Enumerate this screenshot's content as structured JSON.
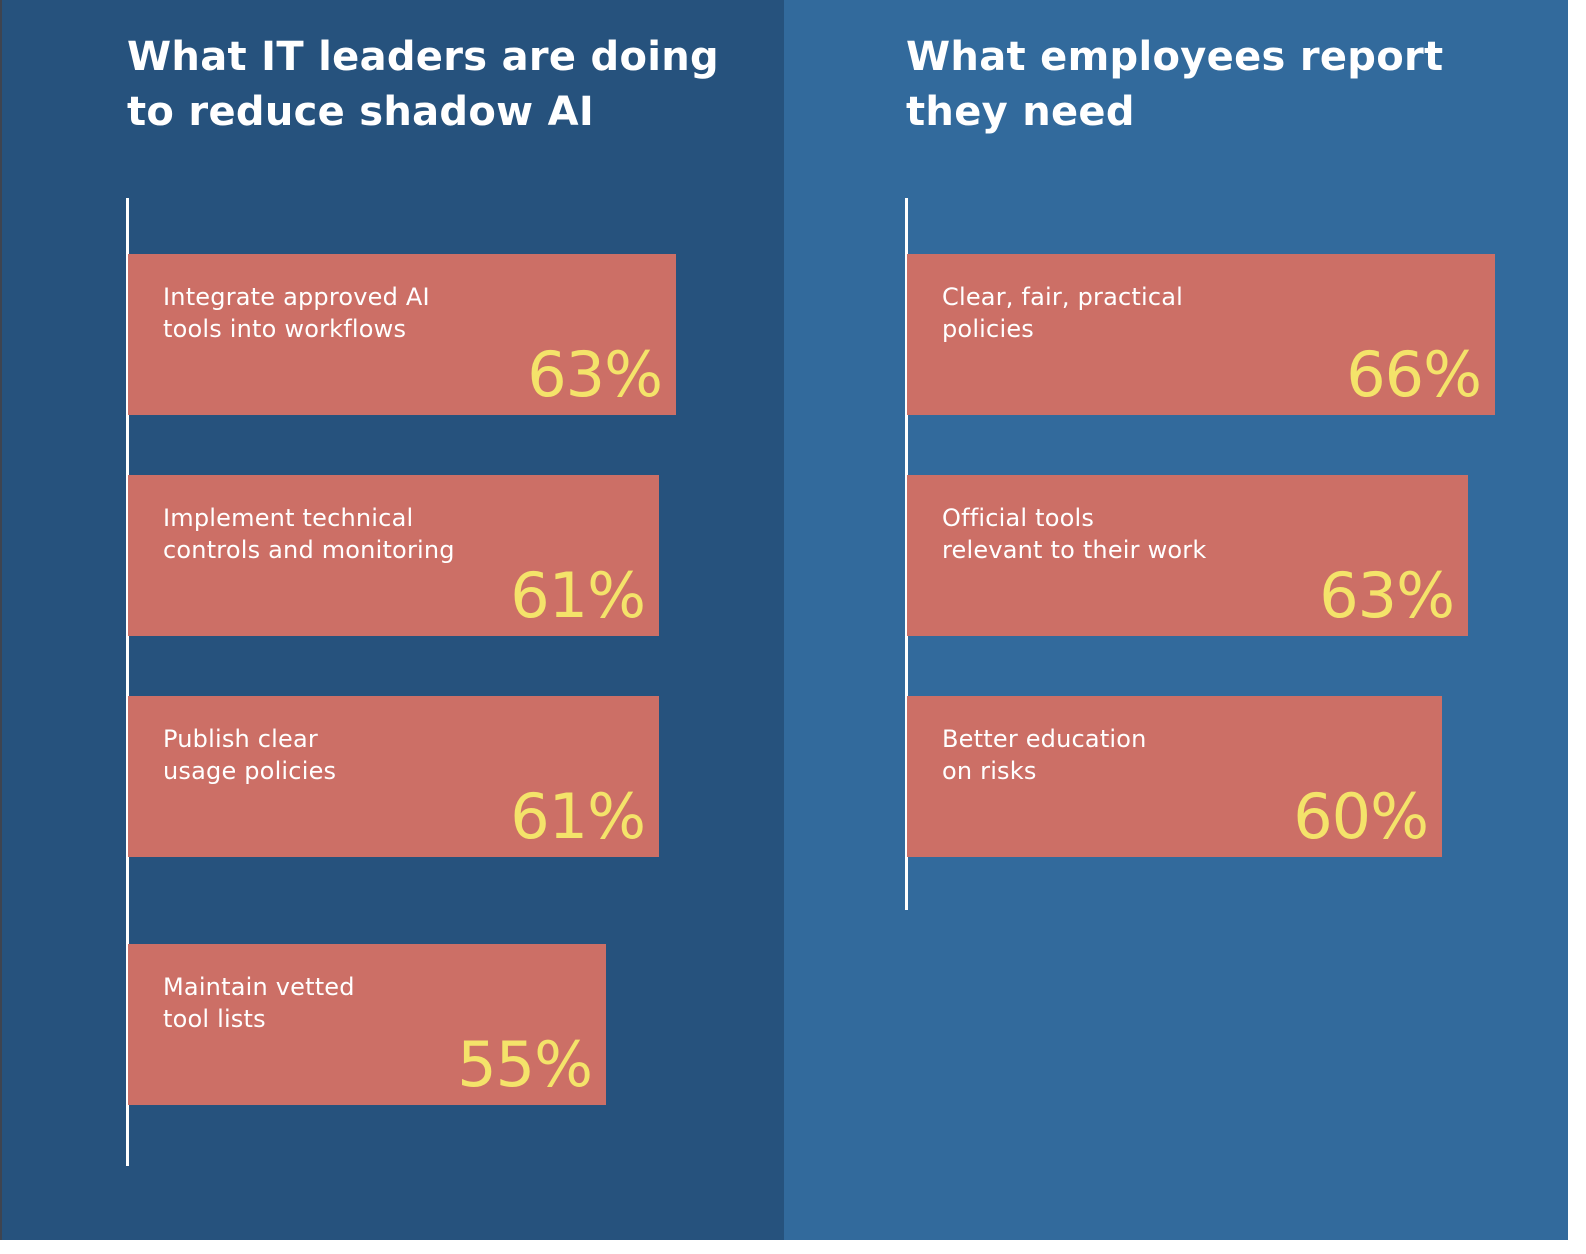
{
  "colors": {
    "left_panel_background": "#26527d",
    "right_panel_background": "#326a9c",
    "bar_fill": "#cc6f66",
    "label_text": "#ffffff",
    "value_text": "#f4e36a",
    "axis_line": "#ffffff"
  },
  "chart_data": [
    {
      "type": "bar",
      "orientation": "horizontal",
      "title": "What IT leaders are doing\nto reduce shadow AI",
      "categories": [
        "Integrate approved AI\ntools into workflows",
        "Implement technical\ncontrols and monitoring",
        "Publish clear\nusage policies",
        "Maintain vetted\ntool lists"
      ],
      "values": [
        63,
        61,
        61,
        55
      ],
      "value_labels": [
        "63%",
        "61%",
        "61%",
        "55%"
      ],
      "unit": "%",
      "grid": false,
      "legend": "none"
    },
    {
      "type": "bar",
      "orientation": "horizontal",
      "title": "What employees report\nthey need",
      "categories": [
        "Clear, fair, practical\npolicies",
        "Official tools\nrelevant to their work",
        "Better education\non risks"
      ],
      "values": [
        66,
        63,
        60
      ],
      "value_labels": [
        "66%",
        "63%",
        "60%"
      ],
      "unit": "%",
      "grid": false,
      "legend": "none"
    }
  ]
}
